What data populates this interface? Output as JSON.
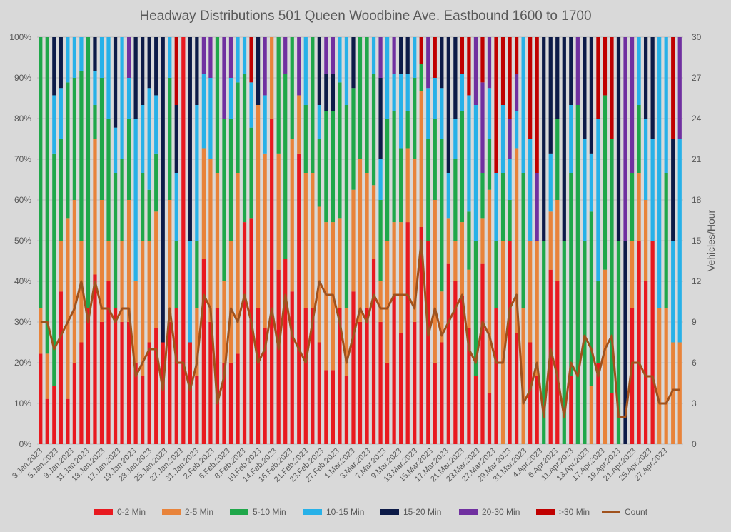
{
  "chart_data": {
    "type": "bar",
    "stacked": true,
    "percent_stacked": true,
    "title": "Headway Distributions 501 Queen  Woodbine Ave. Eastbound 1600 to 1700",
    "ylabel": "",
    "y2label": "Vehicles/Hour",
    "ylim": [
      0,
      100
    ],
    "y2lim": [
      0,
      30
    ],
    "y_ticks": [
      "0%",
      "10%",
      "20%",
      "30%",
      "40%",
      "50%",
      "60%",
      "70%",
      "80%",
      "90%",
      "100%"
    ],
    "y2_ticks": [
      "0",
      "3",
      "6",
      "9",
      "12",
      "15",
      "18",
      "21",
      "24",
      "27",
      "30"
    ],
    "grid": true,
    "legend_position": "bottom",
    "tick_labels": [
      "3.Jan.2023",
      "5.Jan.2023",
      "9.Jan.2023",
      "11.Jan.2023",
      "13.Jan.2023",
      "17.Jan.2023",
      "19.Jan.2023",
      "23.Jan.2023",
      "25.Jan.2023",
      "27.Jan.2023",
      "31.Jan.2023",
      "2.Feb.2023",
      "6.Feb.2023",
      "8.Feb.2023",
      "10.Feb.2023",
      "14.Feb.2023",
      "16.Feb.2023",
      "21.Feb.2023",
      "23.Feb.2023",
      "27.Feb.2023",
      "1.Mar.2023",
      "3.Mar.2023",
      "7.Mar.2023",
      "9.Mar.2023",
      "13.Mar.2023",
      "15.Mar.2023",
      "17.Mar.2023",
      "21.Mar.2023",
      "23.Mar.2023",
      "27.Mar.2023",
      "29.Mar.2023",
      "31.Mar.2023",
      "4.Apr.2023",
      "6.Apr.2023",
      "11.Apr.2023",
      "13.Apr.2023",
      "17.Apr.2023",
      "19.Apr.2023",
      "21.Apr.2023",
      "25.Apr.2023",
      "27.Apr.2023"
    ],
    "series_colors": {
      "0-2 Min": "#e8191f",
      "2-5 Min": "#e8833a",
      "5-10 Min": "#1fa74a",
      "10-15 Min": "#27b1e8",
      "15-20 Min": "#0d1b48",
      "20-30 Min": "#7030a0",
      ">30 Min": "#c00000",
      "Count": "#a0521d"
    },
    "legend": [
      "0-2 Min",
      "2-5 Min",
      "5-10 Min",
      "10-15 Min",
      "15-20 Min",
      "20-30 Min",
      ">30 Min",
      "Count"
    ],
    "bars": [
      {
        "counts": [
          2,
          1,
          6,
          0,
          0,
          0,
          0
        ],
        "count": 9
      },
      {
        "counts": [
          1,
          1,
          7,
          0,
          0,
          0,
          0
        ],
        "count": 9
      },
      {
        "counts": [
          1,
          0,
          4,
          1,
          1,
          0,
          0
        ],
        "count": 7
      },
      {
        "counts": [
          3,
          1,
          2,
          1,
          1,
          0,
          0
        ],
        "count": 8
      },
      {
        "counts": [
          1,
          4,
          3,
          1,
          0,
          0,
          0
        ],
        "count": 9
      },
      {
        "counts": [
          2,
          4,
          3,
          1,
          0,
          0,
          0
        ],
        "count": 10
      },
      {
        "counts": [
          3,
          3,
          5,
          1,
          0,
          0,
          0
        ],
        "count": 12
      },
      {
        "counts": [
          4,
          0,
          8,
          0,
          0,
          0,
          0
        ],
        "count": 9
      },
      {
        "counts": [
          5,
          4,
          1,
          1,
          1,
          0,
          0
        ],
        "count": 12
      },
      {
        "counts": [
          3,
          3,
          3,
          1,
          0,
          0,
          0
        ],
        "count": 10
      },
      {
        "counts": [
          4,
          1,
          3,
          2,
          0,
          0,
          0
        ],
        "count": 10
      },
      {
        "counts": [
          3,
          0,
          3,
          1,
          2,
          0,
          0
        ],
        "count": 9
      },
      {
        "counts": [
          3,
          2,
          2,
          3,
          0,
          0,
          0
        ],
        "count": 10
      },
      {
        "counts": [
          3,
          3,
          2,
          1,
          0,
          1,
          0
        ],
        "count": 10
      },
      {
        "counts": [
          1,
          1,
          0,
          2,
          1,
          0,
          0
        ],
        "count": 5
      },
      {
        "counts": [
          1,
          2,
          1,
          1,
          1,
          0,
          0
        ],
        "count": 6
      },
      {
        "counts": [
          2,
          2,
          1,
          2,
          1,
          0,
          0
        ],
        "count": 7
      },
      {
        "counts": [
          2,
          2,
          1,
          1,
          1,
          0,
          0
        ],
        "count": 7
      },
      {
        "counts": [
          1,
          0,
          0,
          0,
          3,
          0,
          0
        ],
        "count": 4
      },
      {
        "counts": [
          3,
          3,
          3,
          1,
          0,
          0,
          0
        ],
        "count": 10
      },
      {
        "counts": [
          2,
          0,
          1,
          1,
          1,
          0,
          1
        ],
        "count": 6
      },
      {
        "counts": [
          1,
          0,
          0,
          0,
          0,
          0,
          0
        ],
        "count": 6
      },
      {
        "counts": [
          1,
          0,
          0,
          1,
          2,
          0,
          0
        ],
        "count": 4
      },
      {
        "counts": [
          1,
          1,
          1,
          2,
          1,
          0,
          0
        ],
        "count": 6
      },
      {
        "counts": [
          5,
          3,
          0,
          2,
          0,
          1,
          0
        ],
        "count": 11
      },
      {
        "counts": [
          3,
          4,
          0,
          2,
          0,
          1,
          0
        ],
        "count": 10
      },
      {
        "counts": [
          1,
          1,
          1,
          0,
          0,
          0,
          0
        ],
        "count": 3
      },
      {
        "counts": [
          1,
          1,
          2,
          0,
          0,
          1,
          0
        ],
        "count": 5
      },
      {
        "counts": [
          2,
          3,
          3,
          1,
          0,
          1,
          0
        ],
        "count": 10
      },
      {
        "counts": [
          2,
          4,
          2,
          1,
          0,
          0,
          0
        ],
        "count": 9
      },
      {
        "counts": [
          6,
          0,
          4,
          1,
          0,
          0,
          0
        ],
        "count": 11
      },
      {
        "counts": [
          5,
          0,
          2,
          1,
          0,
          0,
          1
        ],
        "count": 9
      },
      {
        "counts": [
          2,
          3,
          0,
          0,
          1,
          0,
          0
        ],
        "count": 6
      },
      {
        "counts": [
          2,
          3,
          0,
          1,
          0,
          1,
          0
        ],
        "count": 7
      },
      {
        "counts": [
          4,
          1,
          0,
          0,
          0,
          0,
          0
        ],
        "count": 10
      },
      {
        "counts": [
          3,
          2,
          2,
          0,
          0,
          0,
          0
        ],
        "count": 7
      },
      {
        "counts": [
          5,
          0,
          5,
          0,
          0,
          1,
          0
        ],
        "count": 11
      },
      {
        "counts": [
          3,
          3,
          2,
          0,
          0,
          0,
          0
        ],
        "count": 8
      },
      {
        "counts": [
          5,
          1,
          0,
          0,
          0,
          1,
          0
        ],
        "count": 7
      },
      {
        "counts": [
          2,
          2,
          1,
          1,
          0,
          0,
          0
        ],
        "count": 6
      },
      {
        "counts": [
          3,
          3,
          3,
          0,
          0,
          0,
          0
        ],
        "count": 9
      },
      {
        "counts": [
          3,
          4,
          2,
          1,
          2,
          0,
          0
        ],
        "count": 12
      },
      {
        "counts": [
          2,
          4,
          3,
          0,
          1,
          1,
          0
        ],
        "count": 11
      },
      {
        "counts": [
          2,
          4,
          3,
          0,
          1,
          1,
          0
        ],
        "count": 11
      },
      {
        "counts": [
          3,
          2,
          3,
          1,
          0,
          0,
          0
        ],
        "count": 9
      },
      {
        "counts": [
          1,
          1,
          3,
          1,
          0,
          0,
          0
        ],
        "count": 6
      },
      {
        "counts": [
          3,
          2,
          2,
          0,
          1,
          0,
          0
        ],
        "count": 8
      },
      {
        "counts": [
          3,
          4,
          3,
          0,
          0,
          0,
          0
        ],
        "count": 10
      },
      {
        "counts": [
          3,
          3,
          3,
          0,
          0,
          0,
          0
        ],
        "count": 9
      },
      {
        "counts": [
          5,
          2,
          3,
          1,
          0,
          0,
          0
        ],
        "count": 11
      },
      {
        "counts": [
          3,
          1,
          2,
          1,
          2,
          1,
          0
        ],
        "count": 10
      },
      {
        "counts": [
          2,
          3,
          3,
          2,
          0,
          0,
          0
        ],
        "count": 10
      },
      {
        "counts": [
          4,
          2,
          3,
          1,
          0,
          1,
          0
        ],
        "count": 11
      },
      {
        "counts": [
          3,
          3,
          2,
          2,
          1,
          0,
          0
        ],
        "count": 11
      },
      {
        "counts": [
          6,
          2,
          1,
          1,
          1,
          0,
          0
        ],
        "count": 11
      },
      {
        "counts": [
          3,
          4,
          2,
          1,
          0,
          0,
          0
        ],
        "count": 10
      },
      {
        "counts": [
          8,
          5,
          1,
          0,
          0,
          0,
          1
        ],
        "count": 15
      },
      {
        "counts": [
          4,
          0,
          2,
          1,
          0,
          1,
          0
        ],
        "count": 8
      },
      {
        "counts": [
          2,
          4,
          2,
          1,
          0,
          0,
          1
        ],
        "count": 10
      },
      {
        "counts": [
          2,
          1,
          3,
          1,
          1,
          0,
          0
        ],
        "count": 8
      },
      {
        "counts": [
          4,
          1,
          0,
          1,
          3,
          0,
          0
        ],
        "count": 9
      },
      {
        "counts": [
          4,
          1,
          2,
          1,
          2,
          0,
          0
        ],
        "count": 10
      },
      {
        "counts": [
          4,
          2,
          3,
          1,
          0,
          0,
          1
        ],
        "count": 11
      },
      {
        "counts": [
          2,
          1,
          1,
          2,
          0,
          0,
          1
        ],
        "count": 7
      },
      {
        "counts": [
          1,
          0,
          2,
          2,
          0,
          1,
          0
        ],
        "count": 6
      },
      {
        "counts": [
          4,
          1,
          1,
          0,
          0,
          2,
          1
        ],
        "count": 9
      },
      {
        "counts": [
          1,
          4,
          1,
          1,
          0,
          1,
          0
        ],
        "count": 8
      },
      {
        "counts": [
          2,
          0,
          1,
          1,
          0,
          0,
          2
        ],
        "count": 6
      },
      {
        "counts": [
          0,
          3,
          1,
          1,
          0,
          0,
          1
        ],
        "count": 6
      },
      {
        "counts": [
          5,
          0,
          1,
          1,
          0,
          1,
          2
        ],
        "count": 10
      },
      {
        "counts": [
          3,
          5,
          0,
          1,
          0,
          1,
          1
        ],
        "count": 11
      },
      {
        "counts": [
          0,
          1,
          1,
          1,
          0,
          0,
          0
        ],
        "count": 3
      },
      {
        "counts": [
          1,
          1,
          0,
          1,
          0,
          0,
          1
        ],
        "count": 4
      },
      {
        "counts": [
          1,
          2,
          0,
          0,
          0,
          1,
          2
        ],
        "count": 6
      },
      {
        "counts": [
          0,
          0,
          1,
          0,
          1,
          0,
          0
        ],
        "count": 2
      },
      {
        "counts": [
          3,
          1,
          0,
          1,
          2,
          0,
          0
        ],
        "count": 7
      },
      {
        "counts": [
          2,
          1,
          1,
          0,
          1,
          0,
          0
        ],
        "count": 5
      },
      {
        "counts": [
          0,
          0,
          1,
          0,
          1,
          0,
          0
        ],
        "count": 2
      },
      {
        "counts": [
          1,
          0,
          3,
          1,
          1,
          0,
          0
        ],
        "count": 6
      },
      {
        "counts": [
          0,
          0,
          5,
          0,
          0,
          1,
          0
        ],
        "count": 5
      },
      {
        "counts": [
          0,
          0,
          2,
          1,
          1,
          0,
          0
        ],
        "count": 8
      },
      {
        "counts": [
          0,
          1,
          3,
          1,
          2,
          0,
          0
        ],
        "count": 7
      },
      {
        "counts": [
          1,
          0,
          1,
          2,
          0,
          0,
          1
        ],
        "count": 5
      },
      {
        "counts": [
          0,
          3,
          3,
          0,
          0,
          0,
          1
        ],
        "count": 7
      },
      {
        "counts": [
          1,
          0,
          5,
          0,
          0,
          0,
          2
        ],
        "count": 8
      },
      {
        "counts": [
          0,
          0,
          1,
          0,
          1,
          0,
          0
        ],
        "count": 2
      },
      {
        "counts": [
          0,
          0,
          0,
          0,
          1,
          1,
          0
        ],
        "count": 2
      },
      {
        "counts": [
          2,
          1,
          1,
          0,
          0,
          2,
          0
        ],
        "count": 6
      },
      {
        "counts": [
          3,
          1,
          1,
          1,
          0,
          0,
          0
        ],
        "count": 6
      },
      {
        "counts": [
          2,
          1,
          0,
          1,
          1,
          0,
          0
        ],
        "count": 5
      },
      {
        "counts": [
          2,
          0,
          0,
          1,
          1,
          0,
          0
        ],
        "count": 5
      },
      {
        "counts": [
          0,
          1,
          0,
          2,
          0,
          0,
          0
        ],
        "count": 3
      },
      {
        "counts": [
          0,
          1,
          1,
          1,
          0,
          0,
          0
        ],
        "count": 3
      },
      {
        "counts": [
          0,
          1,
          0,
          1,
          1,
          0,
          1
        ],
        "count": 4
      },
      {
        "counts": [
          0,
          1,
          0,
          2,
          0,
          1,
          0
        ],
        "count": 4
      }
    ]
  }
}
